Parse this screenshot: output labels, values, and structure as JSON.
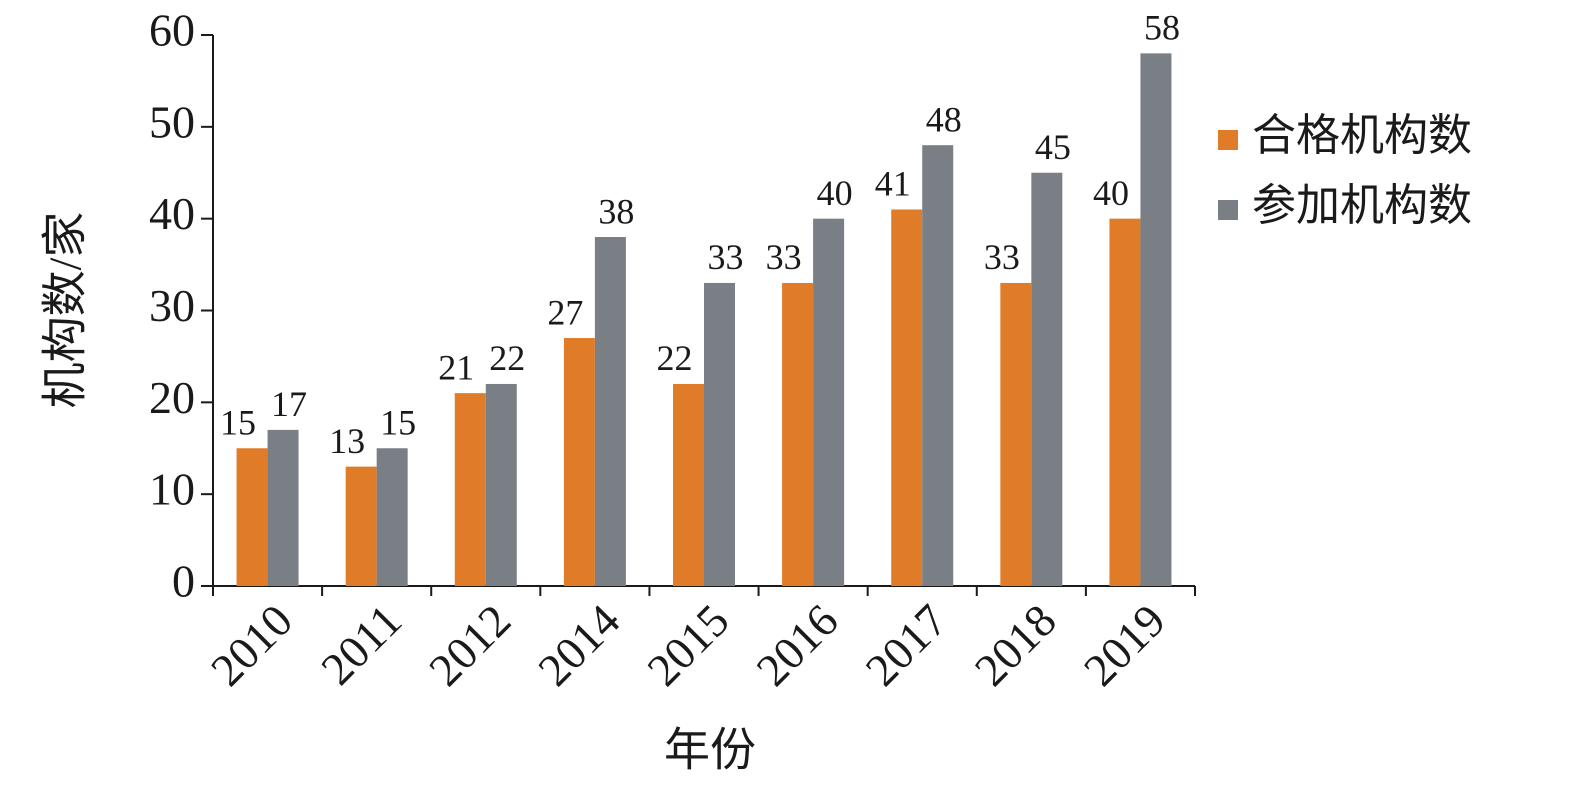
{
  "chart_data": {
    "type": "bar",
    "x_label": "年份",
    "y_label": "机构数/家",
    "categories": [
      "2010",
      "2011",
      "2012",
      "2014",
      "2015",
      "2016",
      "2017",
      "2018",
      "2019"
    ],
    "series": [
      {
        "name": "合格机构数",
        "color": "#e07b28",
        "values": [
          15,
          13,
          21,
          27,
          22,
          33,
          41,
          33,
          40
        ]
      },
      {
        "name": "参加机构数",
        "color": "#7a7e85",
        "values": [
          17,
          15,
          22,
          38,
          33,
          40,
          48,
          45,
          58
        ]
      }
    ],
    "ylim": [
      0,
      60
    ],
    "yticks": [
      0,
      10,
      20,
      30,
      40,
      50,
      60
    ],
    "grid": false,
    "legend": "right"
  }
}
